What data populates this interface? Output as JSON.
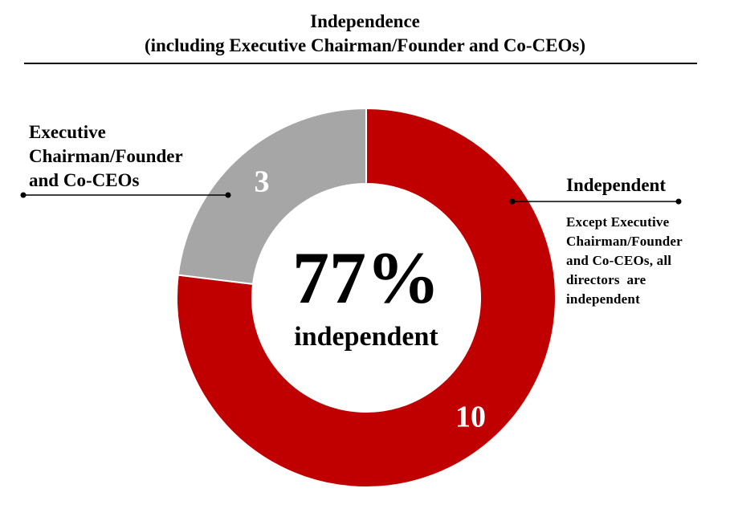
{
  "title_line1": "Independence",
  "title_line2": "(including Executive Chairman/Founder and Co-CEOs)",
  "center": {
    "percent_text": "77%",
    "sub_text": "independent"
  },
  "callouts": {
    "executive": {
      "label_lines": [
        "Executive",
        "Chairman/Founder",
        "and Co-CEOs"
      ]
    },
    "independent": {
      "label": "Independent",
      "note_lines": [
        "Except Executive",
        "Chairman/Founder",
        "and Co-CEOs, all",
        "directors  are",
        "independent"
      ]
    }
  },
  "colors": {
    "independent": "#C00000",
    "executive": "#A6A6A6",
    "separator": "#FFFFFF",
    "text": "#000000",
    "value_label": "#FFFFFF"
  },
  "chart_data": {
    "type": "pie",
    "style": "donut",
    "start": "12 o'clock, clockwise",
    "slices": [
      {
        "label": "Independent",
        "value": 10,
        "value_label": "10",
        "color": "#C00000"
      },
      {
        "label": "Executive Chairman/Founder and Co-CEOs",
        "value": 3,
        "value_label": "3",
        "color": "#A6A6A6"
      }
    ],
    "center_label": "77% independent"
  }
}
